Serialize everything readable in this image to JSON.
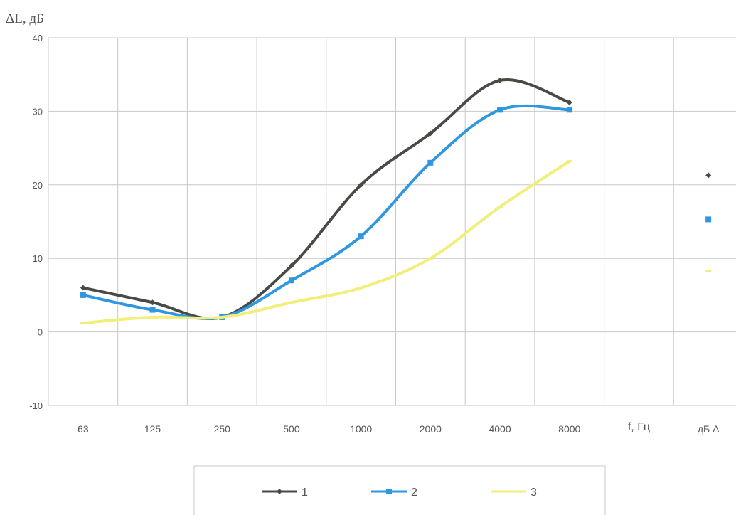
{
  "chart_data": {
    "type": "line",
    "title": "",
    "xlabel": "f, Гц",
    "ylabel": "ΔL, дБ",
    "ylim": [
      -10,
      40
    ],
    "yticks": [
      -10,
      0,
      10,
      20,
      30,
      40
    ],
    "categories": [
      "63",
      "125",
      "250",
      "500",
      "1000",
      "2000",
      "4000",
      "8000",
      "f, Гц",
      "дБ А"
    ],
    "grid": true,
    "legend_position": "bottom",
    "series": [
      {
        "name": "1",
        "color": "#4a4a45",
        "marker": "diamond",
        "values": [
          6,
          4,
          2,
          9,
          20,
          27,
          34.2,
          31.2,
          null,
          21.3
        ]
      },
      {
        "name": "2",
        "color": "#2f96e0",
        "marker": "square",
        "values": [
          5,
          3,
          2,
          7,
          13,
          23,
          30.2,
          30.2,
          null,
          15.3
        ]
      },
      {
        "name": "3",
        "color": "#f2ee7a",
        "marker": "dash",
        "values": [
          1.2,
          2,
          2,
          4,
          6,
          10,
          17,
          23.2,
          null,
          8.3
        ]
      }
    ]
  }
}
